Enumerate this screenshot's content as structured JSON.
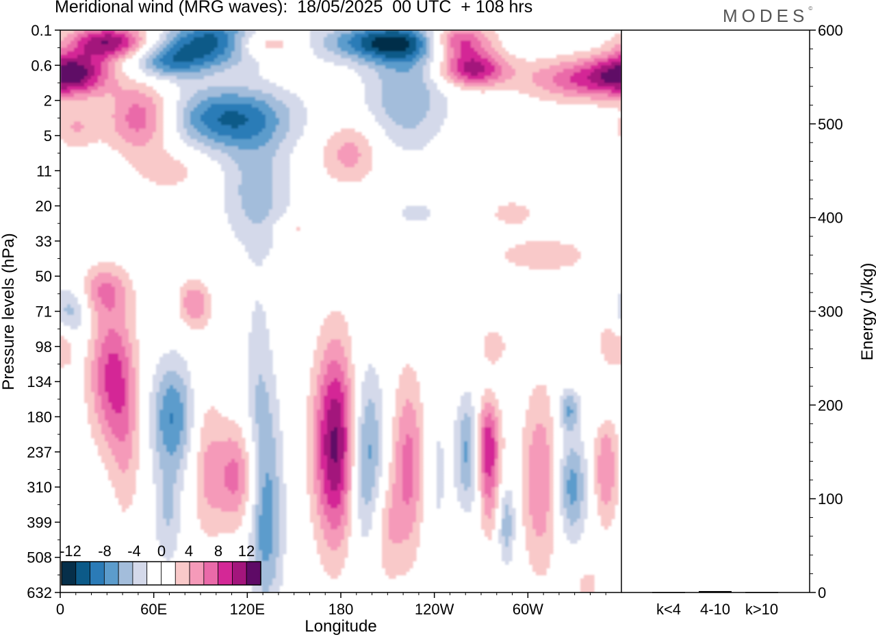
{
  "header": {
    "title": "Meridional wind (MRG waves):  18/05/2025  00 UTC  + 108 hrs",
    "brand": "MODES",
    "brand_mark": "©"
  },
  "chart_data": [
    {
      "type": "heatmap",
      "title": "Meridional wind (MRG waves):  18/05/2025  00 UTC  + 108 hrs",
      "xlabel": "Longitude",
      "ylabel": "Pressure levels (hPa)",
      "x_ticks": [
        "0",
        "60E",
        "120E",
        "180",
        "120W",
        "60W"
      ],
      "x_tick_lon": [
        0,
        60,
        120,
        180,
        240,
        300
      ],
      "xlim": [
        0,
        360
      ],
      "y_ticks": [
        "0.1",
        "0.6",
        "2",
        "5",
        "11",
        "20",
        "33",
        "50",
        "71",
        "98",
        "134",
        "180",
        "237",
        "310",
        "399",
        "508",
        "632"
      ],
      "y_scale": "categorical pressure levels (top 0.1 hPa to bottom 632 hPa)",
      "colorbar": {
        "labels": [
          "-12",
          "-8",
          "-4",
          "0",
          "4",
          "8",
          "12"
        ],
        "levels": [
          -14,
          -12,
          -10,
          -8,
          -6,
          -4,
          -2,
          0,
          2,
          4,
          6,
          8,
          10,
          12,
          14
        ],
        "colors": [
          "#062f4a",
          "#0c5a88",
          "#2b7bb7",
          "#5c9ccc",
          "#a3bddb",
          "#d4d9ea",
          "#ffffff",
          "#ffffff",
          "#f9c9c9",
          "#f59ab9",
          "#ea6aa9",
          "#d42896",
          "#a3157c",
          "#5e0a66"
        ],
        "placement": "bottom-left"
      },
      "blobs": [
        {
          "lon": 32,
          "level": 0.35,
          "value": 12,
          "w": 26,
          "h": 0.5
        },
        {
          "lon": 8,
          "level": 1.2,
          "value": 10,
          "w": 24,
          "h": 0.6
        },
        {
          "lon": 70,
          "level": 0.9,
          "value": -8,
          "w": 28,
          "h": 0.5
        },
        {
          "lon": 108,
          "level": 0.3,
          "value": -14,
          "w": 38,
          "h": 0.6
        },
        {
          "lon": 128,
          "level": 0.35,
          "value": 12,
          "w": 26,
          "h": 0.45
        },
        {
          "lon": 214,
          "level": 0.35,
          "value": -12,
          "w": 42,
          "h": 0.55
        },
        {
          "lon": 254,
          "level": 0.3,
          "value": 12,
          "w": 22,
          "h": 0.5
        },
        {
          "lon": 264,
          "level": 1.1,
          "value": 11,
          "w": 22,
          "h": 0.5
        },
        {
          "lon": 338,
          "level": 1.4,
          "value": 8,
          "w": 40,
          "h": 0.6
        },
        {
          "lon": 108,
          "level": 2.5,
          "value": -10,
          "w": 40,
          "h": 0.9
        },
        {
          "lon": 52,
          "level": 2.5,
          "value": 8,
          "w": 22,
          "h": 1.0
        },
        {
          "lon": 10,
          "level": 2.8,
          "value": 4,
          "w": 14,
          "h": 0.6
        },
        {
          "lon": 222,
          "level": 1.8,
          "value": -6,
          "w": 26,
          "h": 1.6
        },
        {
          "lon": 186,
          "level": 3.5,
          "value": 5,
          "w": 20,
          "h": 0.9
        },
        {
          "lon": 126,
          "level": 4.6,
          "value": -5,
          "w": 22,
          "h": 1.6
        },
        {
          "lon": 70,
          "level": 4.0,
          "value": 3,
          "w": 22,
          "h": 0.6
        },
        {
          "lon": 150,
          "level": 5.6,
          "value": 3,
          "w": 12,
          "h": 0.3
        },
        {
          "lon": 290,
          "level": 5.2,
          "value": 3,
          "w": 16,
          "h": 0.4
        },
        {
          "lon": 228,
          "level": 5.2,
          "value": -3,
          "w": 14,
          "h": 0.35
        },
        {
          "lon": 310,
          "level": 6.4,
          "value": 3,
          "w": 38,
          "h": 0.6
        },
        {
          "lon": 28,
          "level": 7.4,
          "value": 5,
          "w": 16,
          "h": 0.7
        },
        {
          "lon": 86,
          "level": 7.8,
          "value": 6,
          "w": 10,
          "h": 0.7
        },
        {
          "lon": 6,
          "level": 8.0,
          "value": -5,
          "w": 12,
          "h": 0.8
        },
        {
          "lon": 32,
          "level": 9.8,
          "value": 8,
          "w": 14,
          "h": 2.0
        },
        {
          "lon": 72,
          "level": 11.0,
          "value": -8,
          "w": 14,
          "h": 1.6
        },
        {
          "lon": 42,
          "level": 11.5,
          "value": 4,
          "w": 10,
          "h": 2.5
        },
        {
          "lon": 114,
          "level": 12.7,
          "value": 7,
          "w": 18,
          "h": 1.5
        },
        {
          "lon": 93,
          "level": 12.2,
          "value": 3,
          "w": 10,
          "h": 2.5
        },
        {
          "lon": 69,
          "level": 13.8,
          "value": -4,
          "w": 9,
          "h": 1.5
        },
        {
          "lon": 132,
          "level": 13.6,
          "value": -8,
          "w": 11,
          "h": 2.8
        },
        {
          "lon": 127,
          "level": 10.2,
          "value": -3,
          "w": 10,
          "h": 3.5
        },
        {
          "lon": 177,
          "level": 11.8,
          "value": 13,
          "w": 14,
          "h": 2.8
        },
        {
          "lon": 196,
          "level": 12.2,
          "value": -8,
          "w": 12,
          "h": 2.6
        },
        {
          "lon": 224,
          "level": 12.4,
          "value": 7,
          "w": 12,
          "h": 2.6
        },
        {
          "lon": 208,
          "level": 14.2,
          "value": 4,
          "w": 10,
          "h": 1.6
        },
        {
          "lon": 240,
          "level": 12.6,
          "value": -3,
          "w": 10,
          "h": 3.0
        },
        {
          "lon": 262,
          "level": 12.0,
          "value": -7,
          "w": 8,
          "h": 1.6
        },
        {
          "lon": 274,
          "level": 11.8,
          "value": 10,
          "w": 8,
          "h": 1.3
        },
        {
          "lon": 276,
          "level": 13.5,
          "value": 4,
          "w": 8,
          "h": 1.2
        },
        {
          "lon": 286,
          "level": 14.0,
          "value": -6,
          "w": 6,
          "h": 1.2
        },
        {
          "lon": 308,
          "level": 12.8,
          "value": 6,
          "w": 12,
          "h": 2.6
        },
        {
          "lon": 328,
          "level": 13.0,
          "value": -7,
          "w": 10,
          "h": 1.5
        },
        {
          "lon": 326,
          "level": 10.8,
          "value": -6,
          "w": 7,
          "h": 0.6
        },
        {
          "lon": 350,
          "level": 12.5,
          "value": 6,
          "w": 8,
          "h": 1.6
        },
        {
          "lon": 278,
          "level": 9.0,
          "value": 3,
          "w": 10,
          "h": 0.6
        },
        {
          "lon": 352,
          "level": 8.8,
          "value": 3,
          "w": 8,
          "h": 1.0
        },
        {
          "lon": 3,
          "level": 9.0,
          "value": 4,
          "w": 6,
          "h": 0.6
        },
        {
          "lon": 348,
          "level": 10.5,
          "value": -3,
          "w": 6,
          "h": 0.6
        },
        {
          "lon": 338,
          "level": 15.8,
          "value": 3,
          "w": 8,
          "h": 0.6
        }
      ]
    },
    {
      "type": "bar",
      "ylabel": "Energy (J/kg)",
      "categories": [
        "k<4",
        "4-10",
        "k>10"
      ],
      "values": [
        0.5,
        1.5,
        0.5
      ],
      "ylim": [
        0,
        600
      ],
      "y_ticks": [
        "0",
        "100",
        "200",
        "300",
        "400",
        "500",
        "600"
      ]
    }
  ]
}
